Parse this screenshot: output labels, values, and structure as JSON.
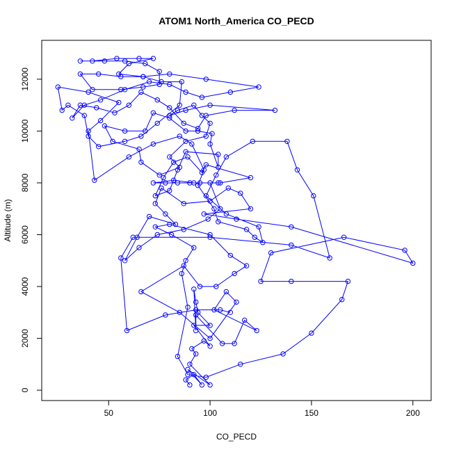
{
  "chart_data": {
    "type": "line",
    "title": "ATOM1 North_America CO_PECD",
    "xlabel": "CO_PECD",
    "ylabel": "Altitude (m)",
    "xlim": [
      17,
      209
    ],
    "ylim": [
      -400,
      13500
    ],
    "xticks": [
      50,
      100,
      150,
      200
    ],
    "yticks": [
      0,
      2000,
      4000,
      6000,
      8000,
      10000,
      12000
    ],
    "grid": false,
    "legend": "none",
    "series_color": "#0000ff",
    "markers": "open-circle",
    "series": [
      {
        "points": [
          [
            90,
            200
          ],
          [
            88,
            400
          ],
          [
            92,
            600
          ],
          [
            96,
            200
          ],
          [
            89,
            800
          ],
          [
            100,
            200
          ],
          [
            90,
            1000
          ],
          [
            93,
            1400
          ],
          [
            91,
            1600
          ],
          [
            97,
            1900
          ],
          [
            100,
            1700
          ],
          [
            92,
            2500
          ],
          [
            100,
            2500
          ],
          [
            94,
            3000
          ],
          [
            93,
            3400
          ],
          [
            92,
            3900
          ],
          [
            93,
            2300
          ],
          [
            93,
            2900
          ],
          [
            106,
            1800
          ],
          [
            112,
            1800
          ],
          [
            117,
            2700
          ],
          [
            123,
            2300
          ],
          [
            102,
            3100
          ],
          [
            108,
            3800
          ],
          [
            113,
            3400
          ],
          [
            100,
            2000
          ],
          [
            85,
            3000
          ],
          [
            66,
            3800
          ],
          [
            87,
            4800
          ],
          [
            95,
            4000
          ],
          [
            103,
            4000
          ],
          [
            112,
            4500
          ],
          [
            118,
            4800
          ],
          [
            110,
            5200
          ],
          [
            100,
            6000
          ],
          [
            80,
            6400
          ],
          [
            73,
            6300
          ],
          [
            81,
            6000
          ],
          [
            92,
            5500
          ],
          [
            88,
            5000
          ],
          [
            86,
            4500
          ],
          [
            89,
            3200
          ],
          [
            84,
            1300
          ],
          [
            89,
            600
          ],
          [
            98,
            500
          ],
          [
            115,
            1000
          ],
          [
            136,
            1400
          ],
          [
            150,
            2200
          ],
          [
            165,
            3500
          ],
          [
            168,
            4200
          ],
          [
            140,
            4200
          ],
          [
            125,
            4200
          ],
          [
            130,
            5300
          ],
          [
            166,
            5900
          ],
          [
            196,
            5400
          ],
          [
            200,
            4900
          ],
          [
            140,
            6300
          ],
          [
            113,
            6600
          ],
          [
            97,
            6800
          ],
          [
            120,
            7000
          ],
          [
            115,
            7600
          ],
          [
            109,
            7800
          ],
          [
            100,
            7300
          ],
          [
            87,
            7200
          ],
          [
            76,
            7800
          ],
          [
            73,
            7200
          ],
          [
            78,
            6800
          ],
          [
            83,
            6400
          ],
          [
            70,
            6700
          ],
          [
            64,
            5900
          ],
          [
            58,
            5000
          ],
          [
            65,
            5500
          ],
          [
            74,
            6000
          ],
          [
            87,
            6200
          ],
          [
            99,
            6600
          ],
          [
            105,
            7000
          ],
          [
            100,
            8000
          ],
          [
            104,
            8000
          ],
          [
            95,
            8000
          ],
          [
            90,
            8000
          ],
          [
            84,
            8000
          ],
          [
            78,
            8000
          ],
          [
            72,
            8000
          ],
          [
            82,
            8100
          ],
          [
            92,
            8000
          ],
          [
            105,
            8000
          ],
          [
            120,
            8200
          ],
          [
            98,
            8700
          ],
          [
            96,
            8400
          ],
          [
            89,
            9000
          ],
          [
            82,
            8800
          ],
          [
            77,
            8200
          ],
          [
            73,
            7500
          ],
          [
            80,
            7700
          ],
          [
            84,
            8500
          ],
          [
            88,
            9200
          ],
          [
            104,
            9100
          ],
          [
            104,
            8600
          ],
          [
            100,
            9500
          ],
          [
            101,
            9900
          ],
          [
            94,
            10000
          ],
          [
            88,
            10000
          ],
          [
            80,
            10500
          ],
          [
            72,
            10700
          ],
          [
            68,
            10000
          ],
          [
            58,
            10000
          ],
          [
            48,
            10200
          ],
          [
            52,
            9600
          ],
          [
            65,
            9300
          ],
          [
            66,
            8800
          ],
          [
            75,
            8300
          ],
          [
            85,
            8600
          ],
          [
            80,
            9000
          ],
          [
            88,
            9600
          ],
          [
            98,
            9800
          ],
          [
            100,
            10300
          ],
          [
            96,
            10600
          ],
          [
            92,
            11000
          ],
          [
            84,
            10800
          ],
          [
            80,
            10600
          ],
          [
            88,
            10800
          ],
          [
            100,
            11000
          ],
          [
            132,
            10800
          ],
          [
            112,
            10800
          ],
          [
            98,
            10600
          ],
          [
            94,
            10100
          ],
          [
            87,
            10300
          ],
          [
            80,
            10900
          ],
          [
            74,
            11200
          ],
          [
            66,
            11500
          ],
          [
            60,
            11000
          ],
          [
            53,
            10700
          ],
          [
            44,
            10900
          ],
          [
            36,
            11000
          ],
          [
            32,
            10500
          ],
          [
            38,
            11000
          ],
          [
            46,
            11200
          ],
          [
            58,
            11600
          ],
          [
            70,
            11900
          ],
          [
            80,
            11800
          ],
          [
            88,
            11500
          ],
          [
            96,
            11300
          ],
          [
            110,
            11500
          ],
          [
            124,
            11700
          ],
          [
            98,
            12000
          ],
          [
            80,
            12200
          ],
          [
            67,
            12100
          ],
          [
            56,
            12100
          ],
          [
            45,
            12200
          ],
          [
            36,
            12200
          ],
          [
            42,
            11600
          ],
          [
            56,
            11600
          ],
          [
            67,
            11700
          ],
          [
            75,
            11800
          ],
          [
            75,
            12300
          ],
          [
            68,
            12600
          ],
          [
            58,
            12700
          ],
          [
            48,
            12700
          ],
          [
            36,
            12700
          ],
          [
            42,
            12700
          ],
          [
            54,
            12800
          ],
          [
            65,
            12800
          ],
          [
            72,
            12800
          ],
          [
            60,
            12600
          ],
          [
            55,
            12200
          ],
          [
            67,
            12100
          ],
          [
            76,
            11900
          ],
          [
            86,
            11900
          ],
          [
            85,
            11000
          ],
          [
            74,
            10300
          ],
          [
            66,
            9800
          ],
          [
            58,
            9600
          ],
          [
            45,
            9400
          ],
          [
            40,
            9800
          ],
          [
            38,
            10600
          ],
          [
            30,
            11000
          ],
          [
            27,
            10800
          ],
          [
            25,
            11700
          ],
          [
            40,
            11500
          ],
          [
            55,
            11100
          ],
          [
            46,
            10400
          ],
          [
            40,
            10000
          ],
          [
            43,
            8100
          ],
          [
            60,
            9000
          ],
          [
            72,
            9500
          ],
          [
            85,
            9800
          ],
          [
            91,
            9500
          ],
          [
            97,
            8500
          ],
          [
            94,
            7900
          ],
          [
            102,
            7000
          ],
          [
            104,
            6500
          ],
          [
            118,
            6200
          ],
          [
            122,
            5900
          ],
          [
            126,
            5700
          ],
          [
            124,
            6300
          ],
          [
            108,
            6800
          ],
          [
            98,
            7500
          ],
          [
            103,
            8300
          ],
          [
            108,
            9000
          ],
          [
            121,
            9600
          ],
          [
            138,
            9600
          ],
          [
            143,
            8500
          ],
          [
            151,
            7500
          ],
          [
            159,
            5100
          ],
          [
            140,
            5600
          ],
          [
            100,
            5900
          ],
          [
            62,
            5900
          ],
          [
            56,
            5100
          ],
          [
            59,
            2300
          ],
          [
            78,
            2900
          ],
          [
            93,
            3100
          ],
          [
            105,
            3100
          ],
          [
            110,
            3000
          ]
        ]
      }
    ]
  }
}
